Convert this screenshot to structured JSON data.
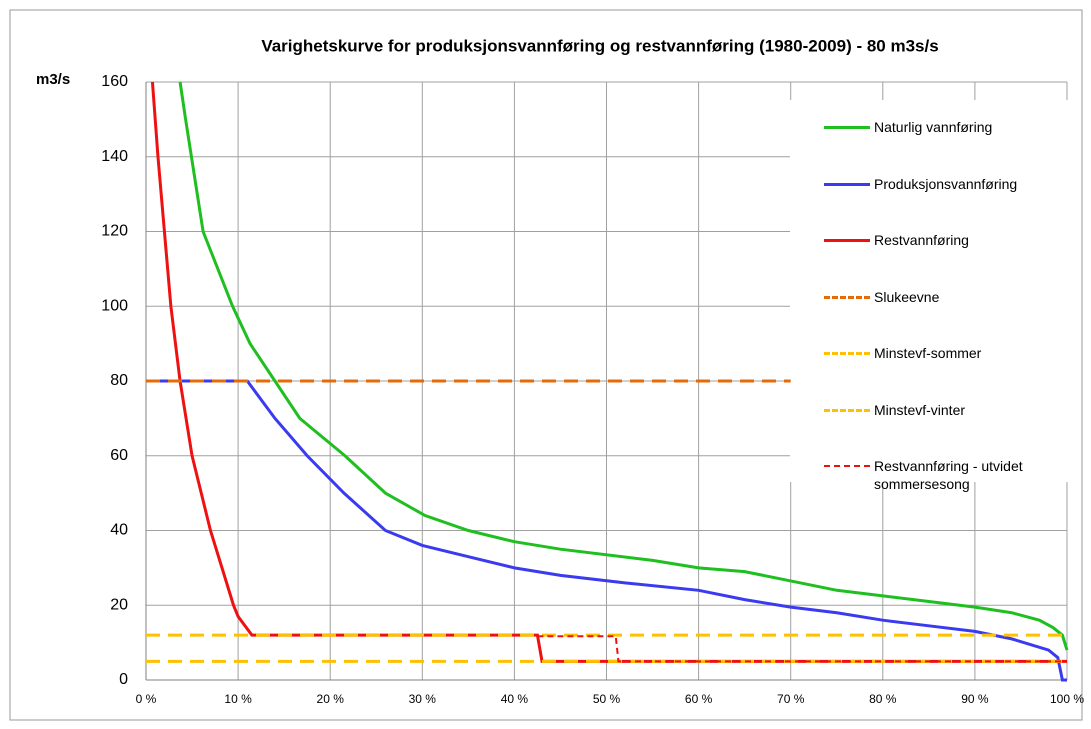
{
  "chart_data": {
    "type": "line",
    "title": "Varighetskurve for produksjonsvannføring og restvannføring (1980-2009) - 80 m3s/s",
    "y_label": "m3/s",
    "xlim": [
      0,
      100
    ],
    "ylim": [
      0,
      160
    ],
    "xticks": [
      {
        "value": 0,
        "label": "0 %"
      },
      {
        "value": 10,
        "label": "10 %"
      },
      {
        "value": 20,
        "label": "20 %"
      },
      {
        "value": 30,
        "label": "30 %"
      },
      {
        "value": 40,
        "label": "40 %"
      },
      {
        "value": 50,
        "label": "50 %"
      },
      {
        "value": 60,
        "label": "60 %"
      },
      {
        "value": 70,
        "label": "70 %"
      },
      {
        "value": 80,
        "label": "80 %"
      },
      {
        "value": 90,
        "label": "90 %"
      },
      {
        "value": 100,
        "label": "100 %"
      }
    ],
    "yticks": [
      0,
      20,
      40,
      60,
      80,
      100,
      120,
      140,
      160
    ],
    "grid": true,
    "legend": "right",
    "series": [
      {
        "name": "Naturlig vannføring",
        "color": "#1fbf1f",
        "line_style": "solid",
        "line_width": 3,
        "x": [
          3.7,
          4.3,
          6.2,
          9.4,
          11.3,
          14,
          16.7,
          21.6,
          26,
          30.3,
          35,
          40,
          45,
          55,
          60,
          65,
          70,
          75,
          80,
          85,
          90,
          94,
          97,
          98.5,
          99.5,
          100
        ],
        "values": [
          160,
          150,
          120,
          100,
          90,
          80,
          70,
          60,
          50,
          44,
          40,
          37,
          35,
          32,
          30,
          29,
          26.5,
          24,
          22.5,
          21,
          19.5,
          18,
          16,
          14,
          12,
          8
        ]
      },
      {
        "name": "Produksjonsvannføring",
        "color": "#3a3af0",
        "line_style": "solid",
        "line_width": 3,
        "x": [
          0,
          11,
          14,
          17.5,
          21.5,
          26,
          30,
          35,
          40,
          45,
          52,
          60,
          65,
          70,
          75,
          80,
          85,
          90,
          94,
          98,
          99,
          99.5,
          100
        ],
        "values": [
          80,
          80,
          70,
          60,
          50,
          40,
          36,
          33,
          30,
          28,
          26,
          24,
          21.5,
          19.5,
          18,
          16,
          14.5,
          13,
          11,
          8,
          6,
          0,
          0
        ]
      },
      {
        "name": "Restvannføring",
        "color": "#ee1111",
        "line_style": "solid",
        "line_width": 3,
        "x": [
          0.7,
          1.3,
          2,
          2.7,
          3.7,
          5,
          7,
          9.5,
          10,
          11.5,
          42.5,
          43,
          100
        ],
        "values": [
          160,
          140,
          120,
          100,
          80,
          60,
          40,
          20,
          17,
          12,
          12,
          5,
          5
        ]
      },
      {
        "name": "Slukeevne",
        "color": "#e36c09",
        "line_style": "dashed",
        "line_width": 3,
        "x": [
          0,
          70
        ],
        "values": [
          80,
          80
        ]
      },
      {
        "name": "Minstevf-sommer",
        "color": "#ffc000",
        "line_style": "dashed",
        "line_width": 3,
        "x": [
          0,
          100
        ],
        "values": [
          12,
          12
        ]
      },
      {
        "name": "Minstevf-vinter",
        "color": "#ffc000",
        "line_style": "dashed",
        "line_width": 3,
        "x": [
          0,
          100
        ],
        "values": [
          5,
          5
        ]
      },
      {
        "name": "Restvannføring - utvidet sommersesong",
        "color": "#ee1111",
        "line_style": "short-dashed",
        "line_width": 2,
        "x": [
          42.5,
          51,
          51.3,
          100
        ],
        "values": [
          11.7,
          11.7,
          5,
          5
        ]
      }
    ]
  }
}
